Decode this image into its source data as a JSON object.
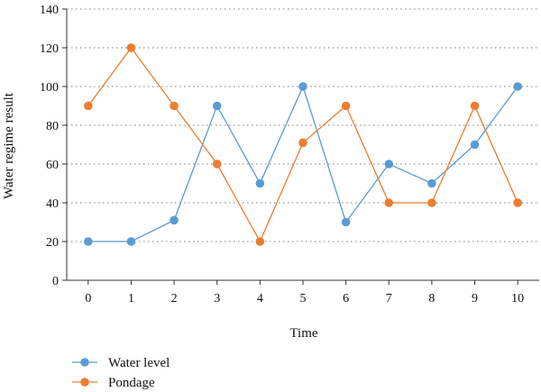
{
  "chart_data": {
    "type": "line",
    "xlabel": "Time",
    "ylabel": "Water regime result",
    "x": [
      0,
      1,
      2,
      3,
      4,
      5,
      6,
      7,
      8,
      9,
      10
    ],
    "xlim": [
      -0.5,
      10.5
    ],
    "ylim": [
      0,
      140
    ],
    "yticks": [
      0,
      20,
      40,
      60,
      80,
      100,
      120,
      140
    ],
    "grid": "horizontal-dotted",
    "legend": "bottom-left",
    "series": [
      {
        "name": "Water level",
        "color": "#5b9bd5",
        "values": [
          20,
          20,
          31,
          90,
          50,
          100,
          30,
          60,
          50,
          70,
          100
        ]
      },
      {
        "name": "Pondage",
        "color": "#ed7d31",
        "values": [
          90,
          120,
          90,
          60,
          20,
          71,
          90,
          40,
          40,
          90,
          40
        ]
      }
    ]
  }
}
